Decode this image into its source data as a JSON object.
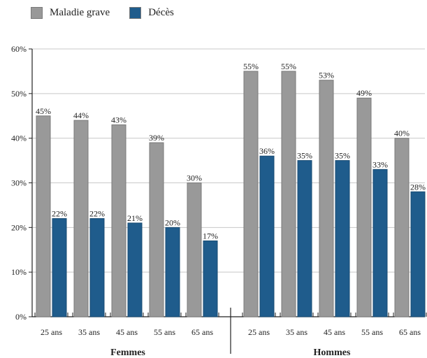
{
  "chart_data": {
    "type": "bar",
    "groups": [
      {
        "label": "Femmes",
        "categories": [
          "25 ans",
          "35 ans",
          "45 ans",
          "55 ans",
          "65 ans"
        ]
      },
      {
        "label": "Hommes",
        "categories": [
          "25 ans",
          "35 ans",
          "45 ans",
          "55 ans",
          "65 ans"
        ]
      }
    ],
    "series": [
      {
        "name": "Maladie grave",
        "color": "#999999",
        "values": [
          45,
          44,
          43,
          39,
          30,
          55,
          55,
          53,
          49,
          40
        ]
      },
      {
        "name": "Décès",
        "color": "#1f5c8c",
        "values": [
          22,
          22,
          21,
          20,
          17,
          36,
          35,
          35,
          33,
          28
        ]
      }
    ],
    "ylim": [
      0,
      60
    ],
    "yticks": [
      0,
      10,
      20,
      30,
      40,
      50,
      60
    ],
    "value_suffix": "%",
    "legend_position": "top-left",
    "grid": true
  }
}
